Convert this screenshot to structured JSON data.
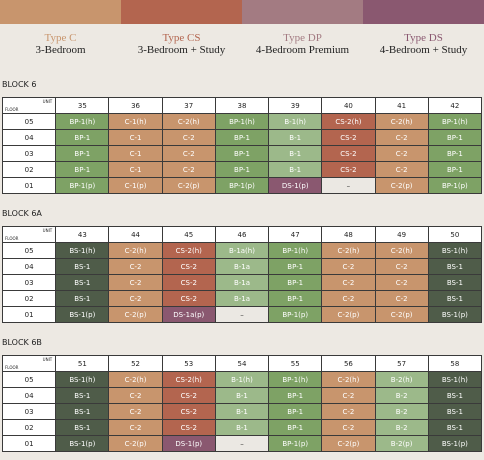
{
  "legend": [
    {
      "title": "Type C",
      "subtitle": "3-Bedroom"
    },
    {
      "title": "Type CS",
      "subtitle": "3-Bedroom + Study"
    },
    {
      "title": "Type DP",
      "subtitle": "4-Bedroom Premium"
    },
    {
      "title": "Type DS",
      "subtitle": "4-Bedroom + Study"
    }
  ],
  "header_unit": "UNIT",
  "header_floor": "FLOOR",
  "blocks": [
    {
      "name": "BLOCK 6",
      "units": [
        35,
        36,
        37,
        38,
        39,
        40,
        41,
        42
      ],
      "rows": [
        {
          "floor": "05",
          "cells": [
            "BP-1(h)",
            "C-1(h)",
            "C-2(h)",
            "BP-1(h)",
            "B-1(h)",
            "CS-2(h)",
            "C-2(h)",
            "BP-1(h)"
          ]
        },
        {
          "floor": "04",
          "cells": [
            "BP-1",
            "C-1",
            "C-2",
            "BP-1",
            "B-1",
            "CS-2",
            "C-2",
            "BP-1"
          ]
        },
        {
          "floor": "03",
          "cells": [
            "BP-1",
            "C-1",
            "C-2",
            "BP-1",
            "B-1",
            "CS-2",
            "C-2",
            "BP-1"
          ]
        },
        {
          "floor": "02",
          "cells": [
            "BP-1",
            "C-1",
            "C-2",
            "BP-1",
            "B-1",
            "CS-2",
            "C-2",
            "BP-1"
          ]
        },
        {
          "floor": "01",
          "cells": [
            "BP-1(p)",
            "C-1(p)",
            "C-2(p)",
            "BP-1(p)",
            "DS-1(p)",
            "–",
            "C-2(p)",
            "BP-1(p)"
          ]
        }
      ]
    },
    {
      "name": "BLOCK 6A",
      "units": [
        43,
        44,
        45,
        46,
        47,
        48,
        49,
        50
      ],
      "rows": [
        {
          "floor": "05",
          "cells": [
            "BS-1(h)",
            "C-2(h)",
            "CS-2(h)",
            "B-1a(h)",
            "BP-1(h)",
            "C-2(h)",
            "C-2(h)",
            "BS-1(h)"
          ]
        },
        {
          "floor": "04",
          "cells": [
            "BS-1",
            "C-2",
            "CS-2",
            "B-1a",
            "BP-1",
            "C-2",
            "C-2",
            "BS-1"
          ]
        },
        {
          "floor": "03",
          "cells": [
            "BS-1",
            "C-2",
            "CS-2",
            "B-1a",
            "BP-1",
            "C-2",
            "C-2",
            "BS-1"
          ]
        },
        {
          "floor": "02",
          "cells": [
            "BS-1",
            "C-2",
            "CS-2",
            "B-1a",
            "BP-1",
            "C-2",
            "C-2",
            "BS-1"
          ]
        },
        {
          "floor": "01",
          "cells": [
            "BS-1(p)",
            "C-2(p)",
            "DS-1a(p)",
            "–",
            "BP-1(p)",
            "C-2(p)",
            "C-2(p)",
            "BS-1(p)"
          ]
        }
      ]
    },
    {
      "name": "BLOCK 6B",
      "units": [
        51,
        52,
        53,
        54,
        55,
        56,
        57,
        58
      ],
      "rows": [
        {
          "floor": "05",
          "cells": [
            "BS-1(h)",
            "C-2(h)",
            "CS-2(h)",
            "B-1(h)",
            "BP-1(h)",
            "C-2(h)",
            "B-2(h)",
            "BS-1(h)"
          ]
        },
        {
          "floor": "04",
          "cells": [
            "BS-1",
            "C-2",
            "CS-2",
            "B-1",
            "BP-1",
            "C-2",
            "B-2",
            "BS-1"
          ]
        },
        {
          "floor": "03",
          "cells": [
            "BS-1",
            "C-2",
            "CS-2",
            "B-1",
            "BP-1",
            "C-2",
            "B-2",
            "BS-1"
          ]
        },
        {
          "floor": "02",
          "cells": [
            "BS-1",
            "C-2",
            "CS-2",
            "B-1",
            "BP-1",
            "C-2",
            "B-2",
            "BS-1"
          ]
        },
        {
          "floor": "01",
          "cells": [
            "BS-1(p)",
            "C-2(p)",
            "DS-1(p)",
            "–",
            "BP-1(p)",
            "C-2(p)",
            "B-2(p)",
            "BS-1(p)"
          ]
        }
      ]
    }
  ]
}
